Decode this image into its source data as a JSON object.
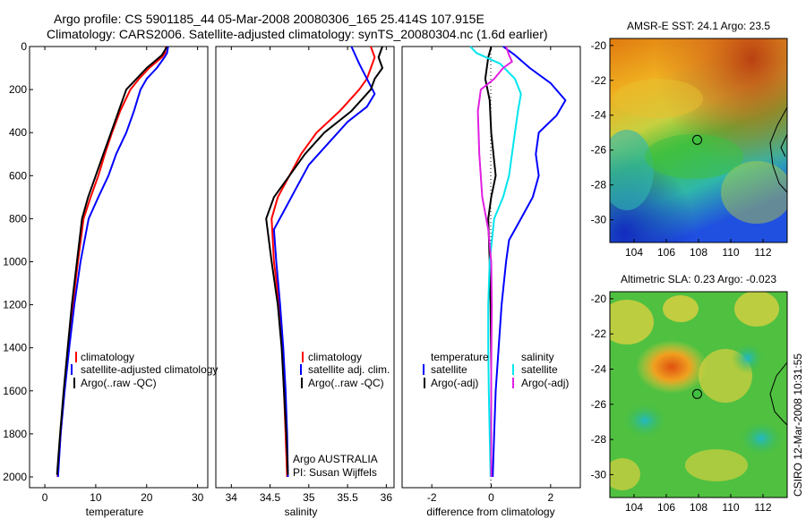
{
  "header": {
    "line1": "Argo profile: CS 5901185_44 05-Mar-2008 20080306_165 25.414S 107.915E",
    "line2": "Climatology: CARS2006. Satellite-adjusted climatology: synTS_20080304.nc (1.6d earlier)"
  },
  "footer": {
    "credit": "CSIRO 12-Mar-2008 10:31:55",
    "argo_program": "Argo AUSTRALIA",
    "pi": "PI: Susan Wijffels"
  },
  "colors": {
    "climatology": "#ff0000",
    "satellite": "#0000ff",
    "argo": "#000000",
    "salinity_satellite": "#00e5ee",
    "salinity_argo": "#e020e0"
  },
  "chart_data": [
    {
      "type": "line",
      "xlabel": "temperature",
      "ylabel": "",
      "xlim": [
        -3,
        32
      ],
      "ylim": [
        2050,
        0
      ],
      "xticks": [
        0,
        10,
        20,
        30
      ],
      "yticks": [
        0,
        200,
        400,
        600,
        800,
        1000,
        1200,
        1400,
        1600,
        1800,
        2000
      ],
      "legend": [
        "climatology",
        "satellite-adjusted climatology",
        "Argo(..raw -QC)"
      ],
      "series": [
        {
          "name": "climatology",
          "color": "#ff0000",
          "points": [
            [
              23.8,
              0
            ],
            [
              23.6,
              30
            ],
            [
              23.0,
              50
            ],
            [
              20.5,
              100
            ],
            [
              18.5,
              150
            ],
            [
              16.8,
              200
            ],
            [
              14.8,
              300
            ],
            [
              13.2,
              400
            ],
            [
              11.8,
              500
            ],
            [
              10.5,
              600
            ],
            [
              9.0,
              700
            ],
            [
              7.6,
              800
            ],
            [
              6.5,
              1000
            ],
            [
              5.5,
              1200
            ],
            [
              4.6,
              1400
            ],
            [
              3.8,
              1600
            ],
            [
              3.1,
              1800
            ],
            [
              2.5,
              2000
            ]
          ]
        },
        {
          "name": "satellite-adjusted climatology",
          "color": "#0000ff",
          "points": [
            [
              24.2,
              0
            ],
            [
              24.0,
              30
            ],
            [
              23.5,
              50
            ],
            [
              22.0,
              100
            ],
            [
              20.0,
              150
            ],
            [
              18.8,
              200
            ],
            [
              17.5,
              300
            ],
            [
              16.0,
              400
            ],
            [
              14.0,
              500
            ],
            [
              12.5,
              600
            ],
            [
              10.5,
              700
            ],
            [
              8.6,
              800
            ],
            [
              7.0,
              1000
            ],
            [
              5.8,
              1200
            ],
            [
              4.8,
              1400
            ],
            [
              3.9,
              1600
            ],
            [
              3.1,
              1800
            ],
            [
              2.6,
              2000
            ]
          ]
        },
        {
          "name": "Argo(..raw -QC)",
          "color": "#000000",
          "points": [
            [
              24.0,
              0
            ],
            [
              23.0,
              40
            ],
            [
              20.0,
              100
            ],
            [
              18.0,
              150
            ],
            [
              16.0,
              200
            ],
            [
              14.5,
              300
            ],
            [
              13.0,
              400
            ],
            [
              11.5,
              500
            ],
            [
              10.0,
              600
            ],
            [
              8.5,
              700
            ],
            [
              7.3,
              800
            ],
            [
              6.3,
              1000
            ],
            [
              5.3,
              1200
            ],
            [
              4.5,
              1400
            ],
            [
              3.7,
              1600
            ],
            [
              3.0,
              1800
            ],
            [
              2.4,
              1990
            ]
          ]
        }
      ]
    },
    {
      "type": "line",
      "xlabel": "salinity",
      "ylabel": "",
      "xlim": [
        33.8,
        36.1
      ],
      "ylim": [
        2050,
        0
      ],
      "xticks": [
        34,
        34.5,
        35,
        35.5,
        36
      ],
      "yticks": [],
      "legend": [
        "climatology",
        "satellite adj. clim.",
        "Argo(..raw -QC)"
      ],
      "series": [
        {
          "name": "climatology",
          "color": "#ff0000",
          "points": [
            [
              35.8,
              0
            ],
            [
              35.85,
              50
            ],
            [
              35.75,
              150
            ],
            [
              35.65,
              200
            ],
            [
              35.4,
              300
            ],
            [
              35.1,
              400
            ],
            [
              34.9,
              500
            ],
            [
              34.75,
              600
            ],
            [
              34.6,
              700
            ],
            [
              34.52,
              800
            ],
            [
              34.55,
              1000
            ],
            [
              34.62,
              1200
            ],
            [
              34.66,
              1400
            ],
            [
              34.68,
              1600
            ],
            [
              34.7,
              1800
            ],
            [
              34.72,
              2000
            ]
          ]
        },
        {
          "name": "satellite adj. clim.",
          "color": "#0000ff",
          "points": [
            [
              35.55,
              0
            ],
            [
              35.65,
              80
            ],
            [
              35.75,
              150
            ],
            [
              35.85,
              220
            ],
            [
              35.75,
              280
            ],
            [
              35.5,
              350
            ],
            [
              35.25,
              450
            ],
            [
              35.0,
              550
            ],
            [
              34.85,
              650
            ],
            [
              34.7,
              750
            ],
            [
              34.55,
              850
            ],
            [
              34.58,
              1000
            ],
            [
              34.63,
              1200
            ],
            [
              34.67,
              1400
            ],
            [
              34.7,
              1600
            ],
            [
              34.72,
              1800
            ],
            [
              34.73,
              2000
            ]
          ]
        },
        {
          "name": "Argo(..raw -QC)",
          "color": "#000000",
          "points": [
            [
              35.95,
              0
            ],
            [
              35.9,
              50
            ],
            [
              35.95,
              100
            ],
            [
              35.85,
              150
            ],
            [
              35.8,
              200
            ],
            [
              35.55,
              300
            ],
            [
              35.2,
              400
            ],
            [
              34.95,
              500
            ],
            [
              34.75,
              600
            ],
            [
              34.55,
              700
            ],
            [
              34.45,
              800
            ],
            [
              34.52,
              1000
            ],
            [
              34.6,
              1200
            ],
            [
              34.65,
              1400
            ],
            [
              34.68,
              1600
            ],
            [
              34.71,
              1800
            ],
            [
              34.73,
              1990
            ]
          ]
        }
      ]
    },
    {
      "type": "line",
      "xlabel": "difference from climatology",
      "ylabel": "",
      "xlim": [
        -3.0,
        3.0
      ],
      "ylim": [
        2050,
        0
      ],
      "xticks": [
        -2,
        0,
        2
      ],
      "yticks": [],
      "legend_temperature_title": "temperature",
      "legend_salinity_title": "salinity",
      "legend": [
        "satellite",
        "Argo(-adj)",
        "satellite",
        "Argo(-adj)"
      ],
      "series": [
        {
          "name": "satellite",
          "group": "temperature",
          "color": "#0000ff",
          "points": [
            [
              0.4,
              0
            ],
            [
              0.8,
              40
            ],
            [
              1.3,
              100
            ],
            [
              2.0,
              170
            ],
            [
              2.5,
              250
            ],
            [
              2.2,
              320
            ],
            [
              1.6,
              400
            ],
            [
              1.5,
              500
            ],
            [
              1.6,
              600
            ],
            [
              1.4,
              700
            ],
            [
              1.0,
              800
            ],
            [
              0.6,
              900
            ],
            [
              0.5,
              1000
            ],
            [
              0.35,
              1200
            ],
            [
              0.25,
              1400
            ],
            [
              0.15,
              1600
            ],
            [
              0.1,
              1800
            ],
            [
              0.05,
              2000
            ]
          ]
        },
        {
          "name": "Argo(-adj)",
          "group": "temperature",
          "color": "#000000",
          "points": [
            [
              0.0,
              0
            ],
            [
              -0.1,
              50
            ],
            [
              -0.2,
              150
            ],
            [
              -0.05,
              250
            ],
            [
              0.0,
              400
            ],
            [
              0.15,
              600
            ],
            [
              0.0,
              700
            ],
            [
              -0.1,
              800
            ],
            [
              -0.05,
              1000
            ],
            [
              -0.02,
              1200
            ],
            [
              0.0,
              1500
            ],
            [
              0.0,
              1800
            ],
            [
              0.0,
              2000
            ]
          ]
        },
        {
          "name": "satellite",
          "group": "salinity",
          "color": "#00e5ee",
          "points": [
            [
              -0.7,
              0
            ],
            [
              -0.5,
              30
            ],
            [
              0.3,
              80
            ],
            [
              0.8,
              150
            ],
            [
              1.0,
              220
            ],
            [
              0.9,
              300
            ],
            [
              0.8,
              400
            ],
            [
              0.7,
              500
            ],
            [
              0.6,
              600
            ],
            [
              0.4,
              700
            ],
            [
              0.1,
              800
            ],
            [
              -0.05,
              1000
            ],
            [
              -0.1,
              1200
            ],
            [
              -0.1,
              1400
            ],
            [
              -0.08,
              1600
            ],
            [
              -0.05,
              1800
            ],
            [
              -0.02,
              2000
            ]
          ]
        },
        {
          "name": "Argo(-adj)",
          "group": "salinity",
          "color": "#e020e0",
          "points": [
            [
              0.5,
              0
            ],
            [
              0.6,
              40
            ],
            [
              0.7,
              70
            ],
            [
              0.4,
              100
            ],
            [
              0.1,
              150
            ],
            [
              -0.35,
              200
            ],
            [
              -0.45,
              300
            ],
            [
              -0.4,
              500
            ],
            [
              -0.3,
              700
            ],
            [
              -0.1,
              850
            ],
            [
              0.0,
              1000
            ],
            [
              0.02,
              1200
            ],
            [
              0.0,
              1500
            ],
            [
              0.0,
              1800
            ],
            [
              0.0,
              2000
            ]
          ]
        }
      ]
    },
    {
      "type": "heatmap",
      "title": "AMSR-E SST: 24.1 Argo: 23.5",
      "xlim": [
        102.5,
        113.5
      ],
      "ylim": [
        -31.3,
        -19.6
      ],
      "xticks": [
        104,
        106,
        108,
        110,
        112
      ],
      "yticks": [
        -20,
        -22,
        -24,
        -26,
        -28,
        -30
      ],
      "marker": {
        "lon": 107.915,
        "lat": -25.414
      }
    },
    {
      "type": "heatmap",
      "title": "Altimetric SLA: 0.23 Argo: -0.023",
      "xlim": [
        102.5,
        113.5
      ],
      "ylim": [
        -31.3,
        -19.6
      ],
      "xticks": [
        104,
        106,
        108,
        110,
        112
      ],
      "yticks": [
        -20,
        -22,
        -24,
        -26,
        -28,
        -30
      ],
      "marker": {
        "lon": 107.915,
        "lat": -25.414
      }
    }
  ]
}
